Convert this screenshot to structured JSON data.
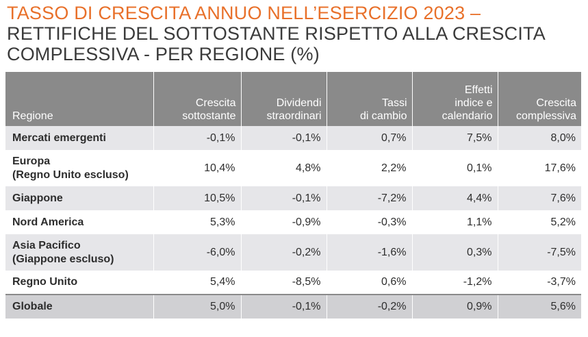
{
  "title": {
    "line1": "TASSO DI CRESCITA ANNUO NELL’ESERCIZIO 2023 –",
    "line2": "RETTIFICHE DEL SOTTOSTANTE RISPETTO ALLA CRESCITA",
    "line3": "COMPLESSIVA - PER REGIONE (%)"
  },
  "colors": {
    "title_accent": "#e8702a",
    "header_bg": "#8a8a8a",
    "row_shade": "#e6e6e9",
    "total_bg": "#d0d0d3"
  },
  "table": {
    "headers": [
      [
        "Regione"
      ],
      [
        "Crescita",
        "sottostante"
      ],
      [
        "Dividendi",
        "straordinari"
      ],
      [
        "Tassi",
        "di cambio"
      ],
      [
        "Effetti",
        "indice e",
        "calendario"
      ],
      [
        "Crescita",
        "complessiva"
      ]
    ],
    "rows": [
      {
        "region": [
          "Mercati emergenti"
        ],
        "values": [
          "-0,1%",
          "-0,1%",
          "0,7%",
          "7,5%",
          "8,0%"
        ]
      },
      {
        "region": [
          "Europa",
          "(Regno Unito escluso)"
        ],
        "values": [
          "10,4%",
          "4,8%",
          "2,2%",
          "0,1%",
          "17,6%"
        ]
      },
      {
        "region": [
          "Giappone"
        ],
        "values": [
          "10,5%",
          "-0,1%",
          "-7,2%",
          "4,4%",
          "7,6%"
        ]
      },
      {
        "region": [
          "Nord America"
        ],
        "values": [
          "5,3%",
          "-0,9%",
          "-0,3%",
          "1,1%",
          "5,2%"
        ]
      },
      {
        "region": [
          "Asia Pacifico",
          "(Giappone escluso)"
        ],
        "values": [
          "-6,0%",
          "-0,2%",
          "-1,6%",
          "0,3%",
          "-7,5%"
        ]
      },
      {
        "region": [
          "Regno Unito"
        ],
        "values": [
          "5,4%",
          "-8,5%",
          "0,6%",
          "-1,2%",
          "-3,7%"
        ]
      }
    ],
    "total": {
      "region": [
        "Globale"
      ],
      "values": [
        "5,0%",
        "-0,1%",
        "-0,2%",
        "0,9%",
        "5,6%"
      ]
    }
  }
}
